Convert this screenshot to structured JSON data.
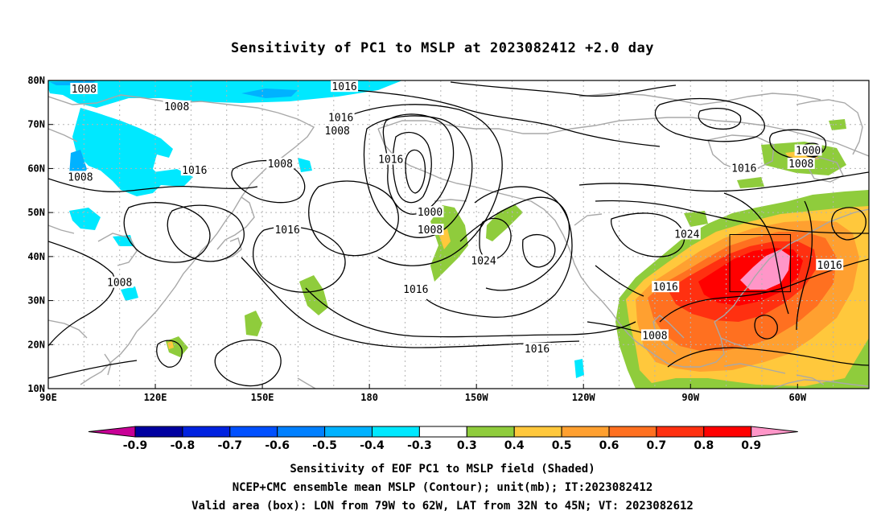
{
  "title": "Sensitivity of PC1 to MSLP at 2023082412 +2.0 day",
  "captions": {
    "line1": "Sensitivity of EOF PC1 to MSLP field (Shaded)",
    "line2": "NCEP+CMC ensemble mean MSLP (Contour); unit(mb); IT:2023082412",
    "line3": "Valid area (box): LON from 79W to 62W, LAT from 32N to 45N; VT: 2023082612"
  },
  "axes": {
    "lat_labels": [
      "80N",
      "70N",
      "60N",
      "50N",
      "40N",
      "30N",
      "20N",
      "10N"
    ],
    "lon_labels": [
      "90E",
      "120E",
      "150E",
      "180",
      "150W",
      "120W",
      "90W",
      "60W"
    ]
  },
  "contour_labels": [
    {
      "text": "1008",
      "lon": 100,
      "lat": 78
    },
    {
      "text": "1008",
      "lon": 126,
      "lat": 74
    },
    {
      "text": "1016",
      "lon": 173,
      "lat": 78.5
    },
    {
      "text": "1016",
      "lon": 172,
      "lat": 71.5
    },
    {
      "text": "1008",
      "lon": 171,
      "lat": 68.5
    },
    {
      "text": "1016",
      "lon": 186,
      "lat": 62
    },
    {
      "text": "1008",
      "lon": 155,
      "lat": 61
    },
    {
      "text": "1016",
      "lon": 131,
      "lat": 59.5
    },
    {
      "text": "1008",
      "lon": 99,
      "lat": 58
    },
    {
      "text": "1000",
      "lon": 197,
      "lat": 50
    },
    {
      "text": "1008",
      "lon": 197,
      "lat": 46
    },
    {
      "text": "1016",
      "lon": 157,
      "lat": 46
    },
    {
      "text": "1024",
      "lon": 212,
      "lat": 39
    },
    {
      "text": "1016",
      "lon": 193,
      "lat": 32.5
    },
    {
      "text": "1008",
      "lon": 110,
      "lat": 34
    },
    {
      "text": "1000",
      "lon": 303,
      "lat": 64
    },
    {
      "text": "1008",
      "lon": 301,
      "lat": 61
    },
    {
      "text": "1016",
      "lon": 285,
      "lat": 60
    },
    {
      "text": "1024",
      "lon": 269,
      "lat": 45
    },
    {
      "text": "1016",
      "lon": 263,
      "lat": 33
    },
    {
      "text": "1016",
      "lon": 309,
      "lat": 38
    },
    {
      "text": "1016",
      "lon": 227,
      "lat": 19
    },
    {
      "text": "1008",
      "lon": 260,
      "lat": 22
    }
  ],
  "valid_box": {
    "lon_min": -79,
    "lon_max": -62,
    "lat_min": 32,
    "lat_max": 45
  },
  "colorbar": {
    "labels": [
      "-0.9",
      "-0.8",
      "-0.7",
      "-0.6",
      "-0.5",
      "-0.4",
      "-0.3",
      "0.3",
      "0.4",
      "0.5",
      "0.6",
      "0.7",
      "0.8",
      "0.9"
    ],
    "colors": [
      "#0000a0",
      "#0022e0",
      "#0050ff",
      "#0080ff",
      "#00b2ff",
      "#00e8ff",
      "#ffffff",
      "#8fcc3c",
      "#ffc83c",
      "#ffa030",
      "#ff7020",
      "#ff3010",
      "#ff0000"
    ],
    "low_extend_color": "#c80096",
    "high_extend_color": "#ff96c8"
  },
  "shading_colors": {
    "cyan": "#00e8ff",
    "light_blue": "#00b2ff",
    "green": "#8fcc3c",
    "yellow": "#ffc83c",
    "orange": "#ffa030",
    "dark_orange": "#ff7020",
    "red_orange": "#ff3010",
    "red": "#ff0000",
    "pink": "#ff96c8",
    "coastline": "#a8a8a8"
  }
}
